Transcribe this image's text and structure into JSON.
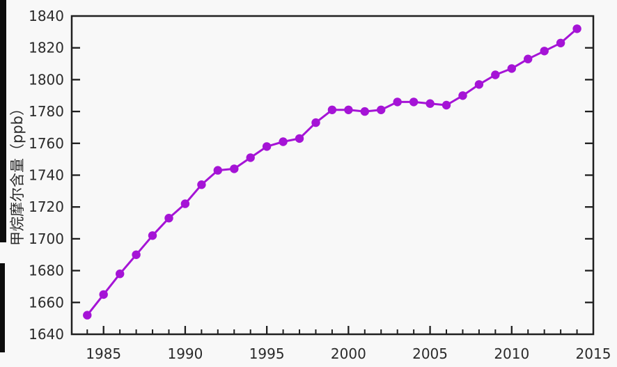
{
  "figure": {
    "background": "#f8f8f8",
    "axis_color": "#1f1f1f",
    "text_color": "#2a2a2a",
    "artifact_bar_color": "#0d0d0d"
  },
  "chart_data": {
    "type": "line",
    "title": "",
    "xlabel": "",
    "ylabel": "甲烷摩尔含量（ppb）",
    "x": [
      1984,
      1985,
      1986,
      1987,
      1988,
      1989,
      1990,
      1991,
      1992,
      1993,
      1994,
      1995,
      1996,
      1997,
      1998,
      1999,
      2000,
      2001,
      2002,
      2003,
      2004,
      2005,
      2006,
      2007,
      2008,
      2009,
      2010,
      2011,
      2012,
      2013,
      2014
    ],
    "series": [
      {
        "color": "#A514D6",
        "marker": "circle",
        "values": [
          1652,
          1665,
          1678,
          1690,
          1702,
          1713,
          1722,
          1734,
          1743,
          1744,
          1751,
          1758,
          1761,
          1763,
          1773,
          1781,
          1781,
          1780,
          1781,
          1786,
          1786,
          1785,
          1784,
          1790,
          1797,
          1803,
          1807,
          1813,
          1818,
          1823,
          1832
        ]
      }
    ],
    "xlim": [
      1983.05,
      2015
    ],
    "ylim": [
      1640,
      1840
    ],
    "x_major_ticks": [
      1985,
      1990,
      1995,
      2000,
      2005,
      2010,
      2015
    ],
    "x_major_tick_labels": [
      "1985",
      "1990",
      "1995",
      "2000",
      "2005",
      "2010",
      "2015"
    ],
    "x_minor_ticks_every_year": true,
    "y_ticks": [
      1640,
      1660,
      1680,
      1700,
      1720,
      1740,
      1760,
      1780,
      1800,
      1820,
      1840
    ],
    "y_tick_labels": [
      "1640",
      "1660",
      "1680",
      "1700",
      "1720",
      "1740",
      "1760",
      "1780",
      "1800",
      "1820",
      "1840"
    ],
    "grid": false,
    "legend": false
  }
}
